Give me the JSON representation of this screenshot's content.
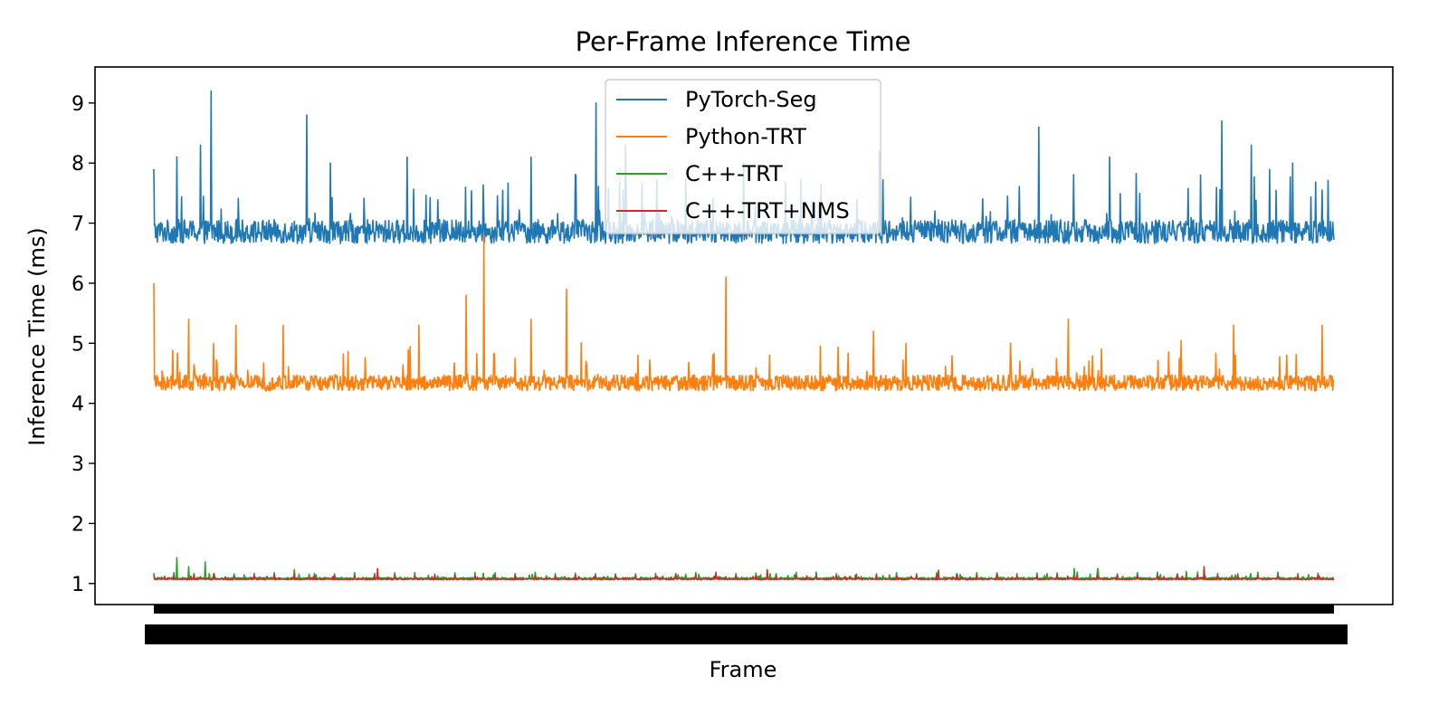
{
  "chart_data": {
    "type": "line",
    "title": "Per-Frame Inference Time",
    "xlabel": "Frame",
    "ylabel": "Inference Time (ms)",
    "xlim": [
      1,
      2000
    ],
    "ylim": [
      0.65,
      9.6
    ],
    "yticks": [
      1,
      2,
      3,
      4,
      5,
      6,
      7,
      8,
      9
    ],
    "grid": false,
    "legend_position": "top-center",
    "frame_count": 2000,
    "series": [
      {
        "name": "PyTorch-Seg",
        "color": "#1f77b4",
        "baseline": 6.8,
        "noise": 0.18,
        "min": 6.2,
        "spikes": [
          {
            "frame": 1,
            "value": 7.9
          },
          {
            "frame": 40,
            "value": 8.1
          },
          {
            "frame": 80,
            "value": 8.3
          },
          {
            "frame": 98,
            "value": 9.2
          },
          {
            "frame": 260,
            "value": 8.8
          },
          {
            "frame": 300,
            "value": 8.0
          },
          {
            "frame": 430,
            "value": 8.1
          },
          {
            "frame": 640,
            "value": 8.1
          },
          {
            "frame": 750,
            "value": 9.0
          },
          {
            "frame": 800,
            "value": 8.3
          },
          {
            "frame": 1000,
            "value": 8.0
          },
          {
            "frame": 1230,
            "value": 8.2
          },
          {
            "frame": 1500,
            "value": 8.6
          },
          {
            "frame": 1620,
            "value": 8.1
          },
          {
            "frame": 1810,
            "value": 8.7
          },
          {
            "frame": 1860,
            "value": 8.3
          },
          {
            "frame": 1930,
            "value": 8.0
          }
        ]
      },
      {
        "name": "Python-TRT",
        "color": "#ff7f0e",
        "baseline": 4.3,
        "noise": 0.12,
        "min": 3.95,
        "spikes": [
          {
            "frame": 1,
            "value": 6.0
          },
          {
            "frame": 60,
            "value": 5.4
          },
          {
            "frame": 140,
            "value": 5.3
          },
          {
            "frame": 220,
            "value": 5.3
          },
          {
            "frame": 450,
            "value": 5.3
          },
          {
            "frame": 530,
            "value": 5.8
          },
          {
            "frame": 560,
            "value": 6.8
          },
          {
            "frame": 640,
            "value": 5.4
          },
          {
            "frame": 700,
            "value": 5.9
          },
          {
            "frame": 970,
            "value": 6.1
          },
          {
            "frame": 1220,
            "value": 5.2
          },
          {
            "frame": 1550,
            "value": 5.4
          },
          {
            "frame": 1830,
            "value": 5.3
          },
          {
            "frame": 1980,
            "value": 5.3
          }
        ]
      },
      {
        "name": "C++-TRT",
        "color": "#2ca02c",
        "baseline": 1.08,
        "noise": 0.015,
        "min": 1.06,
        "spikes": [
          {
            "frame": 40,
            "value": 1.43
          },
          {
            "frame": 60,
            "value": 1.28
          },
          {
            "frame": 88,
            "value": 1.36
          },
          {
            "frame": 1560,
            "value": 1.25
          },
          {
            "frame": 1600,
            "value": 1.25
          },
          {
            "frame": 1750,
            "value": 1.2
          }
        ]
      },
      {
        "name": "C++-TRT+NMS",
        "color": "#d62728",
        "baseline": 1.07,
        "noise": 0.01,
        "min": 1.06,
        "spikes": [
          {
            "frame": 380,
            "value": 1.25
          },
          {
            "frame": 1040,
            "value": 1.23
          },
          {
            "frame": 1330,
            "value": 1.22
          },
          {
            "frame": 1780,
            "value": 1.28
          }
        ]
      }
    ]
  }
}
